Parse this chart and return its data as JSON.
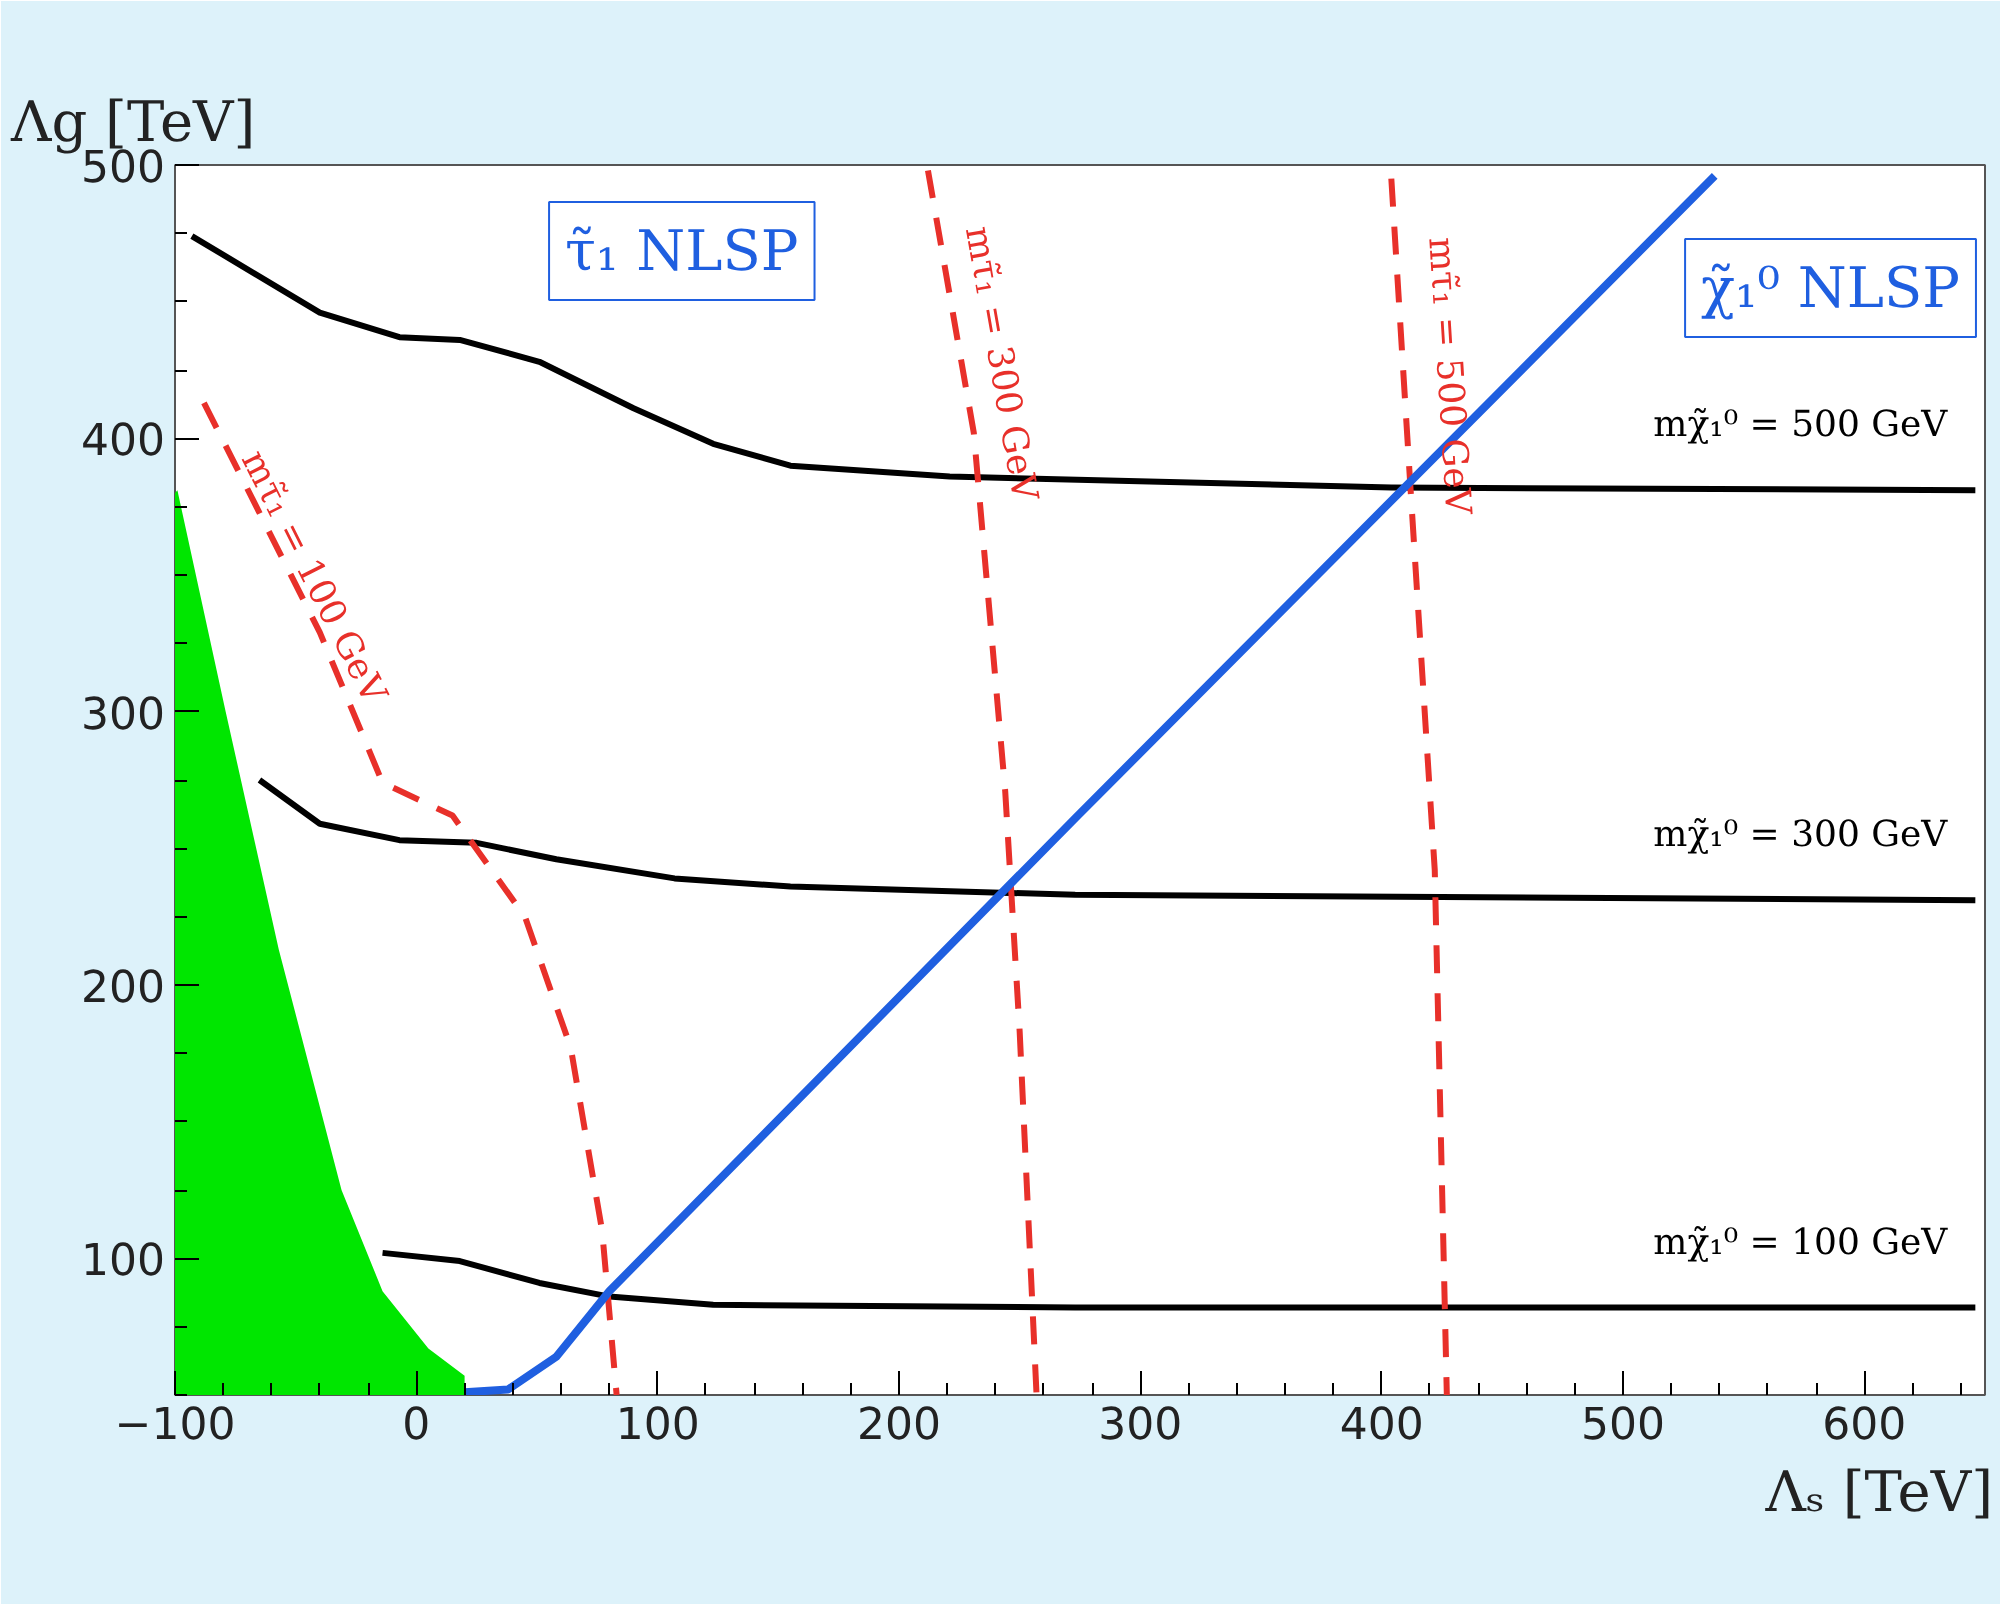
{
  "chart_data": {
    "type": "line",
    "xlabel": "Λₛ [TeV]",
    "ylabel": "Λg [TeV]",
    "xlim": [
      -100,
      650
    ],
    "ylim": [
      50,
      500
    ],
    "xticks": [
      -100,
      0,
      100,
      200,
      300,
      400,
      500,
      600
    ],
    "yticks": [
      100,
      200,
      300,
      400,
      500
    ],
    "grid": false,
    "series": [
      {
        "type": "area",
        "color": "#00e600",
        "x": [
          -100,
          -99,
          -79,
          -57,
          -31,
          -14,
          5,
          20,
          20
        ],
        "values": [
          380,
          381,
          300,
          213,
          125,
          88,
          67,
          57,
          50
        ]
      },
      {
        "name": "mχ̃₁⁰ = 500 GeV",
        "color": "#000000",
        "x": [
          -93,
          -40,
          -7,
          18,
          51,
          90,
          123,
          155,
          221,
          404,
          646
        ],
        "values": [
          474,
          446,
          437,
          436,
          428,
          411,
          398,
          390,
          386,
          382,
          381
        ]
      },
      {
        "name": "mχ̃₁⁰ = 300 GeV",
        "color": "#000000",
        "x": [
          -65,
          -40,
          -7,
          25,
          58,
          107,
          155,
          273,
          646
        ],
        "values": [
          275,
          259,
          253,
          252,
          246,
          239,
          236,
          233,
          231
        ]
      },
      {
        "name": "mχ̃₁⁰ = 100 GeV",
        "color": "#000000",
        "x": [
          -14,
          18,
          51,
          80,
          123,
          273,
          646
        ],
        "values": [
          102,
          99,
          91,
          86,
          83,
          82,
          82
        ]
      },
      {
        "name": "mτ̃₁ = 100 GeV",
        "color": "#e8302a",
        "line_style": "dashed",
        "x": [
          -88,
          -40,
          -14,
          15,
          45,
          64,
          77,
          83
        ],
        "values": [
          413,
          329,
          274,
          262,
          225,
          177,
          110,
          50
        ]
      },
      {
        "name": "mτ̃₁ = 300 GeV",
        "color": "#e8302a",
        "line_style": "dashed",
        "x": [
          212,
          231,
          244,
          250,
          257
        ],
        "values": [
          498,
          402,
          271,
          183,
          50
        ]
      },
      {
        "name": "mτ̃₁ = 500 GeV",
        "color": "#e8302a",
        "line_style": "dashed",
        "x": [
          404,
          412,
          422,
          427
        ],
        "values": [
          495,
          381,
          242,
          50
        ]
      },
      {
        "color": "#1f5fe0",
        "x": [
          20,
          38,
          58,
          80,
          273,
          538
        ],
        "values": [
          51,
          52,
          64,
          88,
          261,
          496
        ]
      }
    ],
    "annotations": [
      "τ̃₁ NLSP",
      "χ̃₁⁰ NLSP"
    ]
  }
}
